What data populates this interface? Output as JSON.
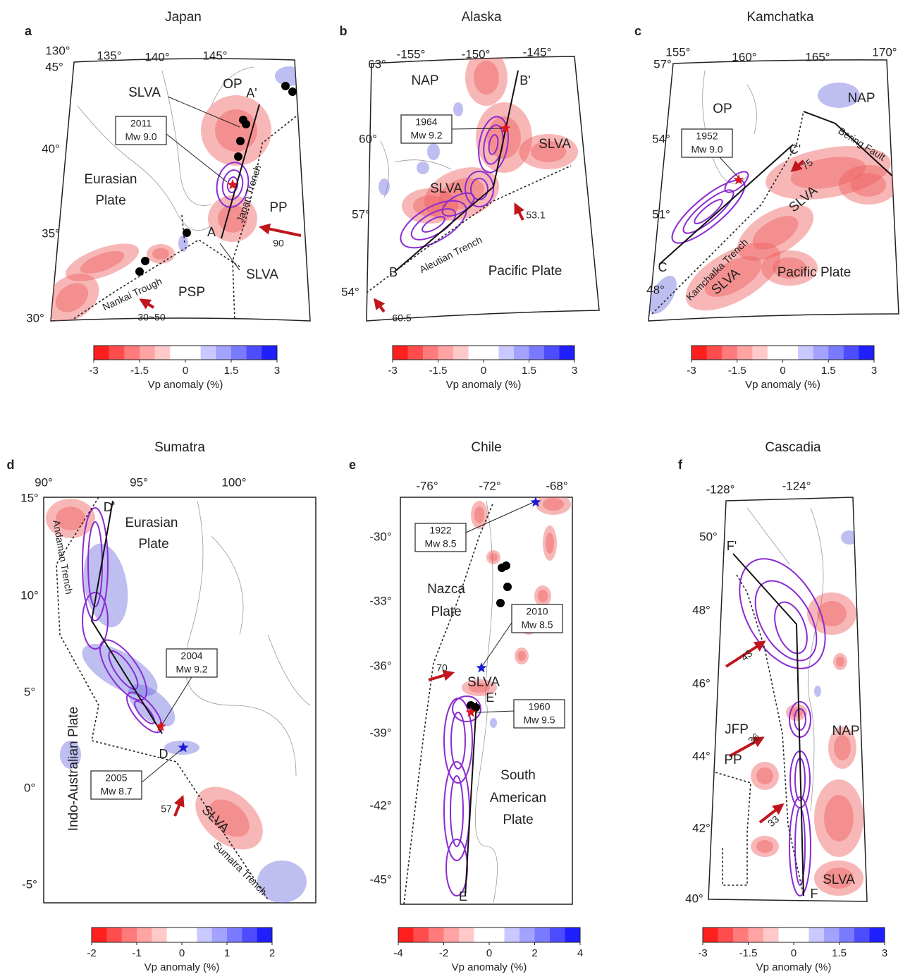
{
  "panels": [
    {
      "letter": "a",
      "title": "Japan",
      "lon_labels": [
        "130°",
        "135°",
        "140°",
        "145°"
      ],
      "lat_labels": [
        "45°",
        "40°",
        "35°",
        "30°"
      ],
      "labels": [
        "SLVA",
        "OP",
        "A'",
        "Eurasian",
        "Plate",
        "Japan Trench",
        "PP",
        "A",
        "90",
        "SLVA",
        "Nankai Trough",
        "PSP",
        "30~50"
      ],
      "callouts": [
        [
          "2011",
          "Mw 9.0"
        ]
      ],
      "colorbar": {
        "range": [
          -3,
          3
        ],
        "ticks": [
          -3,
          -1.5,
          0,
          1.5,
          3
        ],
        "label": "Vp anomaly (%)"
      }
    },
    {
      "letter": "b",
      "title": "Alaska",
      "lon_labels": [
        "-155°",
        "-150°",
        "-145°"
      ],
      "lat_labels": [
        "63°",
        "60°",
        "57°",
        "54°"
      ],
      "labels": [
        "NAP",
        "B'",
        "SLVA",
        "SLVA",
        "53.1",
        "Aleutian Trench",
        "B",
        "Pacific Plate",
        "60.5"
      ],
      "callouts": [
        [
          "1964",
          "Mw 9.2"
        ]
      ],
      "colorbar": {
        "range": [
          -3,
          3
        ],
        "ticks": [
          -3,
          -1.5,
          0,
          1.5,
          3
        ],
        "label": "Vp anomaly (%)"
      }
    },
    {
      "letter": "c",
      "title": "Kamchatka",
      "lon_labels": [
        "155°",
        "160°",
        "165°",
        "170°"
      ],
      "lat_labels": [
        "57°",
        "54°",
        "51°",
        "48°"
      ],
      "labels": [
        "OP",
        "NAP",
        "Bering Fault",
        "C'",
        "75",
        "SLVA",
        "Kamchatka Trench",
        "C",
        "SLVA",
        "Pacific Plate"
      ],
      "callouts": [
        [
          "1952",
          "Mw 9.0"
        ]
      ],
      "colorbar": {
        "range": [
          -3,
          3
        ],
        "ticks": [
          -3,
          -1.5,
          0,
          1.5,
          3
        ],
        "label": "Vp anomaly (%)"
      }
    },
    {
      "letter": "d",
      "title": "Sumatra",
      "lon_labels": [
        "90°",
        "95°",
        "100°"
      ],
      "lat_labels": [
        "15°",
        "10°",
        "5°",
        "0°",
        "-5°"
      ],
      "labels": [
        "D'",
        "Eurasian",
        "Plate",
        "Andaman Trench",
        "Indo-Australian Plate",
        "D",
        "57",
        "SLVA",
        "Sumatra Trench"
      ],
      "callouts": [
        [
          "2004",
          "Mw 9.2"
        ],
        [
          "2005",
          "Mw 8.7"
        ]
      ],
      "colorbar": {
        "range": [
          -2,
          2
        ],
        "ticks": [
          -2,
          -1,
          0,
          1,
          2
        ],
        "label": "Vp anomaly (%)"
      }
    },
    {
      "letter": "e",
      "title": "Chile",
      "lon_labels": [
        "-76°",
        "-72°",
        "-68°"
      ],
      "lat_labels": [
        "-30°",
        "-33°",
        "-36°",
        "-39°",
        "-42°",
        "-45°"
      ],
      "labels": [
        "Nazca",
        "Plate",
        "70",
        "SLVA",
        "E'",
        "South",
        "American",
        "Plate",
        "E"
      ],
      "callouts": [
        [
          "1922",
          "Mw 8.5"
        ],
        [
          "2010",
          "Mw 8.5"
        ],
        [
          "1960",
          "Mw 9.5"
        ]
      ],
      "colorbar": {
        "range": [
          -4,
          4
        ],
        "ticks": [
          -4,
          -2,
          0,
          2,
          4
        ],
        "label": "Vp anomaly (%)"
      }
    },
    {
      "letter": "f",
      "title": "Cascadia",
      "lon_labels": [
        "-128°",
        "-124°"
      ],
      "lat_labels": [
        "50°",
        "48°",
        "46°",
        "44°",
        "42°",
        "40°"
      ],
      "labels": [
        "F'",
        "43",
        "JFP",
        "NAP",
        "36",
        "PP",
        "33",
        "SLVA",
        "F"
      ],
      "callouts": [],
      "colorbar": {
        "range": [
          -3,
          3
        ],
        "ticks": [
          -3,
          -1.5,
          0,
          1.5,
          3
        ],
        "label": "Vp anomaly (%)"
      }
    }
  ]
}
